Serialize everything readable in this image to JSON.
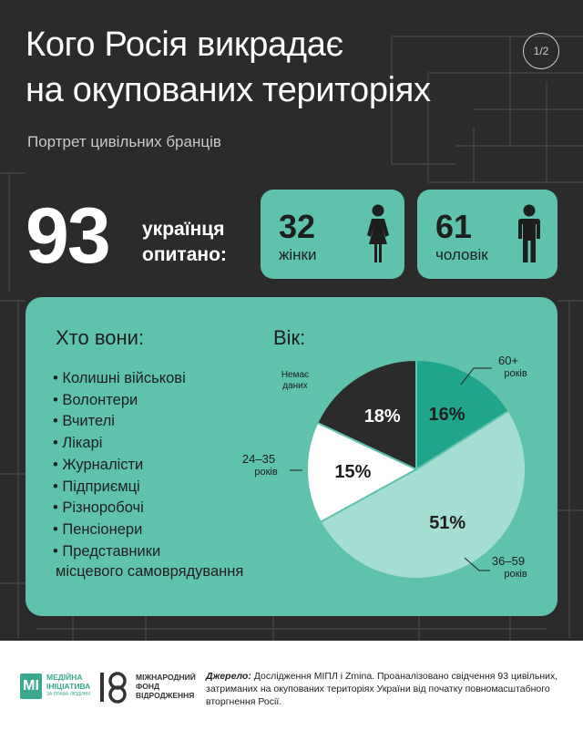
{
  "header": {
    "title_line1": "Кого Росія викрадає",
    "title_line2": "на окупованих територіях",
    "subtitle": "Портрет цивільних бранців",
    "page_indicator": "1/2"
  },
  "totals": {
    "surveyed_value": "93",
    "surveyed_label_line1": "українця",
    "surveyed_label_line2": "опитано:",
    "women_value": "32",
    "women_label": "жінки",
    "men_value": "61",
    "men_label": "чоловік"
  },
  "who": {
    "title": "Хто вони:",
    "items": [
      "• Колишні військові",
      "• Волонтери",
      "• Вчителі",
      "• Лікарі",
      "• Журналісти",
      "• Підприємці",
      "• Різноробочі",
      "• Пенсіонери",
      "• Представники"
    ],
    "tail": "місцевого самоврядування"
  },
  "chart_data": {
    "type": "pie",
    "title": "Вік:",
    "slices": [
      {
        "label_line1": "60+",
        "label_line2": "років",
        "value": 16,
        "value_label": "16%",
        "color": "#1ea58c",
        "text_color": "#1e1e1e"
      },
      {
        "label_line1": "36–59",
        "label_line2": "років",
        "value": 51,
        "value_label": "51%",
        "color": "#a6ddd2",
        "text_color": "#1e1e1e"
      },
      {
        "label_line1": "24–35",
        "label_line2": "років",
        "value": 15,
        "value_label": "15%",
        "color": "#ffffff",
        "text_color": "#1e1e1e"
      },
      {
        "label_line1": "Немає",
        "label_line2": "даних",
        "value": 18,
        "value_label": "18%",
        "color": "#2b2b2b",
        "text_color": "#ffffff"
      }
    ]
  },
  "footer": {
    "logo1_mark": "МІ",
    "logo1_line1": "МЕДІЙНА",
    "logo1_line2": "ІНІЦІАТИВА",
    "logo1_sub": "ЗА ПРАВА ЛЮДИНИ",
    "logo2_line1": "МІЖНАРОДНИЙ",
    "logo2_line2": "ФОНД",
    "logo2_line3": "ВІДРОДЖЕННЯ",
    "source_label": "Джерело:",
    "source_text": " Дослідження МІПЛ і Zmina. Проаналізовано свідчення 93 цивільних, затриманих на окупованих територіях України від початку повномасштабного вторгнення Росії."
  },
  "colors": {
    "background": "#2b2b2b",
    "accent": "#5ec2ac"
  }
}
